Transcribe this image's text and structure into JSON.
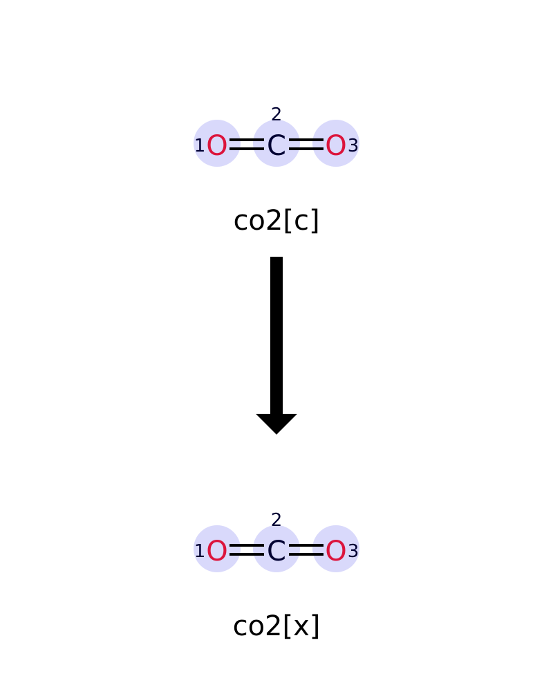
{
  "colors": {
    "highlight": "#d9d9fb",
    "oxygen": "#dc143c",
    "carbon": "#000033",
    "index": "#000033",
    "bond": "#000000",
    "arrow": "#000000",
    "label": "#000000"
  },
  "reactant": {
    "label": "co2[c]",
    "atoms": [
      {
        "symbol": "O",
        "index": "1"
      },
      {
        "symbol": "C",
        "index": "2"
      },
      {
        "symbol": "O",
        "index": "3"
      }
    ],
    "bonds": [
      {
        "from": "1",
        "to": "2",
        "order": 2
      },
      {
        "from": "2",
        "to": "3",
        "order": 2
      }
    ]
  },
  "product": {
    "label": "co2[x]",
    "atoms": [
      {
        "symbol": "O",
        "index": "1"
      },
      {
        "symbol": "C",
        "index": "2"
      },
      {
        "symbol": "O",
        "index": "3"
      }
    ],
    "bonds": [
      {
        "from": "1",
        "to": "2",
        "order": 2
      },
      {
        "from": "2",
        "to": "3",
        "order": 2
      }
    ]
  },
  "arrow": {
    "direction": "down",
    "icon": "arrow-down-icon"
  }
}
